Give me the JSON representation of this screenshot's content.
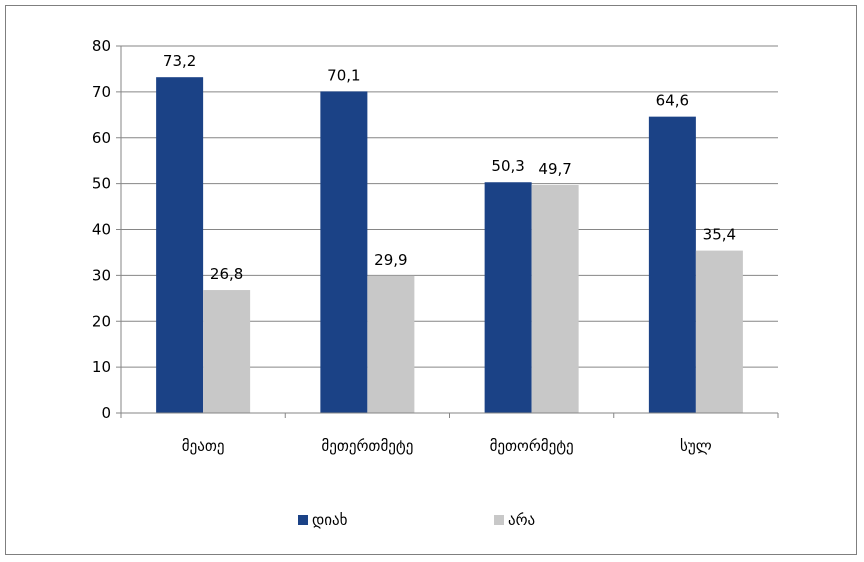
{
  "chart_data": {
    "type": "bar",
    "categories": [
      "მეათე",
      "მეთერთმეტე",
      "მეთორმეტე",
      "სულ"
    ],
    "series": [
      {
        "name": "დიახ",
        "color": "#1b4286",
        "values": [
          73.2,
          70.1,
          50.3,
          64.6
        ],
        "labels": [
          "73,2",
          "70,1",
          "50,3",
          "64,6"
        ]
      },
      {
        "name": "არა",
        "color": "#c8c8c8",
        "values": [
          26.8,
          29.9,
          49.7,
          35.4
        ],
        "labels": [
          "26,8",
          "29,9",
          "49,7",
          "35,4"
        ]
      }
    ],
    "ylim": [
      0,
      80
    ],
    "yticks": [
      0,
      10,
      20,
      30,
      40,
      50,
      60,
      70,
      80
    ],
    "grid": true,
    "legend": "bottom"
  }
}
